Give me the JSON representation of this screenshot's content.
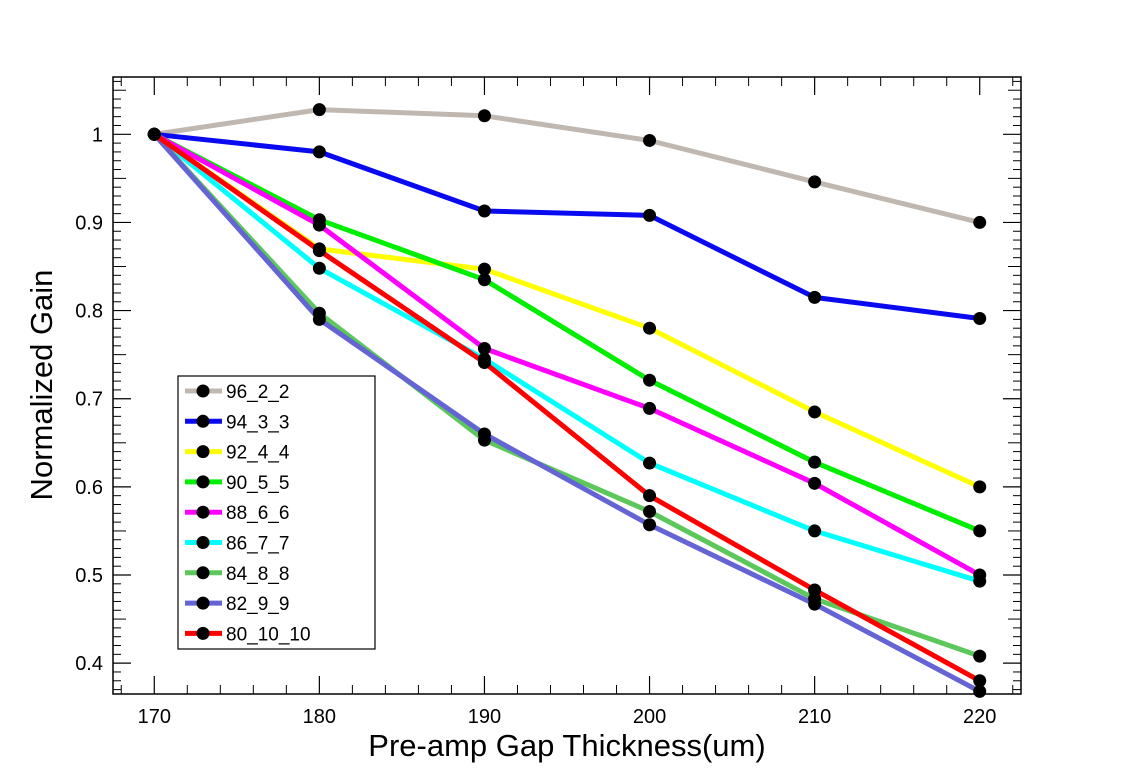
{
  "chart_data": {
    "type": "line",
    "title": "",
    "xlabel": "Pre-amp Gap Thickness(um)",
    "ylabel": "Normalized Gain",
    "x": [
      170,
      180,
      190,
      200,
      210,
      220
    ],
    "xlim": [
      167.5,
      222.5
    ],
    "ylim": [
      0.365,
      1.065
    ],
    "xticks": [
      "170",
      "180",
      "190",
      "200",
      "210",
      "220"
    ],
    "yticks": [
      "0.4",
      "0.5",
      "0.6",
      "0.7",
      "0.8",
      "0.9",
      "1"
    ],
    "grid": false,
    "legend_position": "bottom-left",
    "series": [
      {
        "name": "96_2_2",
        "color": "#c0b8b0",
        "values": [
          1.0,
          1.028,
          1.021,
          0.993,
          0.946,
          0.9
        ]
      },
      {
        "name": "94_3_3",
        "color": "#0a0af0",
        "values": [
          1.0,
          0.98,
          0.913,
          0.908,
          0.815,
          0.791
        ]
      },
      {
        "name": "92_4_4",
        "color": "#ffff00",
        "values": [
          1.0,
          0.87,
          0.847,
          0.78,
          0.685,
          0.6
        ]
      },
      {
        "name": "90_5_5",
        "color": "#00ee00",
        "values": [
          1.0,
          0.903,
          0.835,
          0.721,
          0.628,
          0.55
        ]
      },
      {
        "name": "88_6_6",
        "color": "#ff00ff",
        "values": [
          1.0,
          0.897,
          0.757,
          0.689,
          0.604,
          0.5
        ]
      },
      {
        "name": "86_7_7",
        "color": "#00ffff",
        "values": [
          1.0,
          0.848,
          0.745,
          0.627,
          0.55,
          0.493
        ]
      },
      {
        "name": "84_8_8",
        "color": "#5cc85c",
        "values": [
          1.0,
          0.797,
          0.653,
          0.572,
          0.473,
          0.408
        ]
      },
      {
        "name": "82_9_9",
        "color": "#6464d4",
        "values": [
          1.0,
          0.79,
          0.66,
          0.557,
          0.467,
          0.368
        ]
      },
      {
        "name": "80_10_10",
        "color": "#ff0000",
        "values": [
          1.0,
          0.868,
          0.741,
          0.59,
          0.483,
          0.38
        ]
      }
    ]
  }
}
